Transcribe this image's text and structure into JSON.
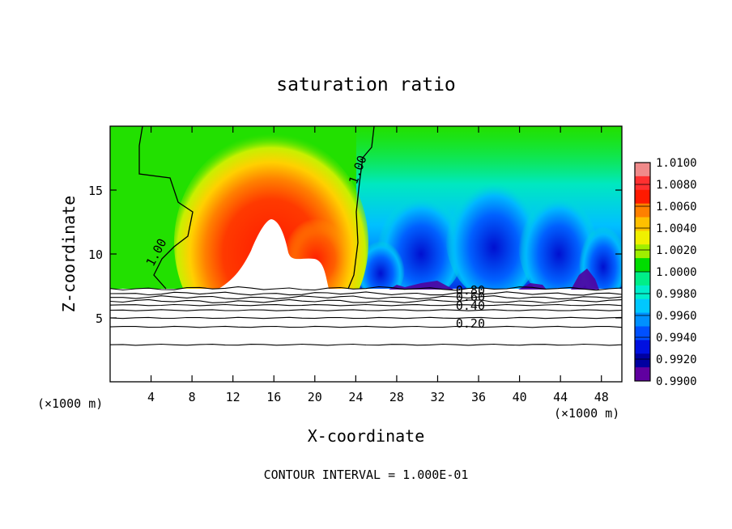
{
  "chart_data": {
    "type": "heatmap",
    "title": "saturation ratio",
    "xlabel": "X-coordinate",
    "ylabel": "Z-coordinate",
    "x_unit_left": "(×1000 m)",
    "x_unit_right": "(×1000 m)",
    "xlim": [
      0,
      50
    ],
    "ylim": [
      0,
      20
    ],
    "x_ticks": [
      4,
      8,
      12,
      16,
      20,
      24,
      28,
      32,
      36,
      40,
      44,
      48
    ],
    "y_ticks": [
      5,
      10,
      15
    ],
    "footer": "CONTOUR INTERVAL = 1.000E-01",
    "colorbar": {
      "levels": [
        "1.0100",
        "1.0080",
        "1.0060",
        "1.0040",
        "1.0020",
        "1.0000",
        "0.9980",
        "0.9960",
        "0.9940",
        "0.9920",
        "0.9900"
      ],
      "colors": [
        "#f08a8a",
        "#ff3030",
        "#ff1a00",
        "#ff8000",
        "#ffc000",
        "#f0f000",
        "#a0ee00",
        "#00dd00",
        "#00ee88",
        "#00eecc",
        "#00c8ff",
        "#0090ff",
        "#0050ff",
        "#0010e0",
        "#0000a0",
        "#6000a0"
      ]
    },
    "contour_labels": [
      {
        "text": "1.00",
        "x": 4.8,
        "z": 10.0,
        "angle": -62
      },
      {
        "text": "1.00",
        "x": 24.5,
        "z": 16.5,
        "angle": -70
      },
      {
        "text": "0.80",
        "x": 35.2,
        "z": 6.9,
        "angle": 0
      },
      {
        "text": "0.60",
        "x": 35.2,
        "z": 6.4,
        "angle": 0
      },
      {
        "text": "0.40",
        "x": 35.2,
        "z": 5.7,
        "angle": 0
      },
      {
        "text": "0.20",
        "x": 35.2,
        "z": 4.3,
        "angle": 0
      }
    ],
    "contours_below": [
      {
        "level": "0.90",
        "z": 7.3
      },
      {
        "level": "0.80",
        "z": 6.9
      },
      {
        "level": "0.70",
        "z": 6.6
      },
      {
        "level": "0.60",
        "z": 6.3
      },
      {
        "level": "0.50",
        "z": 6.0
      },
      {
        "level": "0.40",
        "z": 5.6
      },
      {
        "level": "0.30",
        "z": 5.0
      },
      {
        "level": "0.20",
        "z": 4.3
      },
      {
        "level": "0.10",
        "z": 2.9
      }
    ]
  }
}
